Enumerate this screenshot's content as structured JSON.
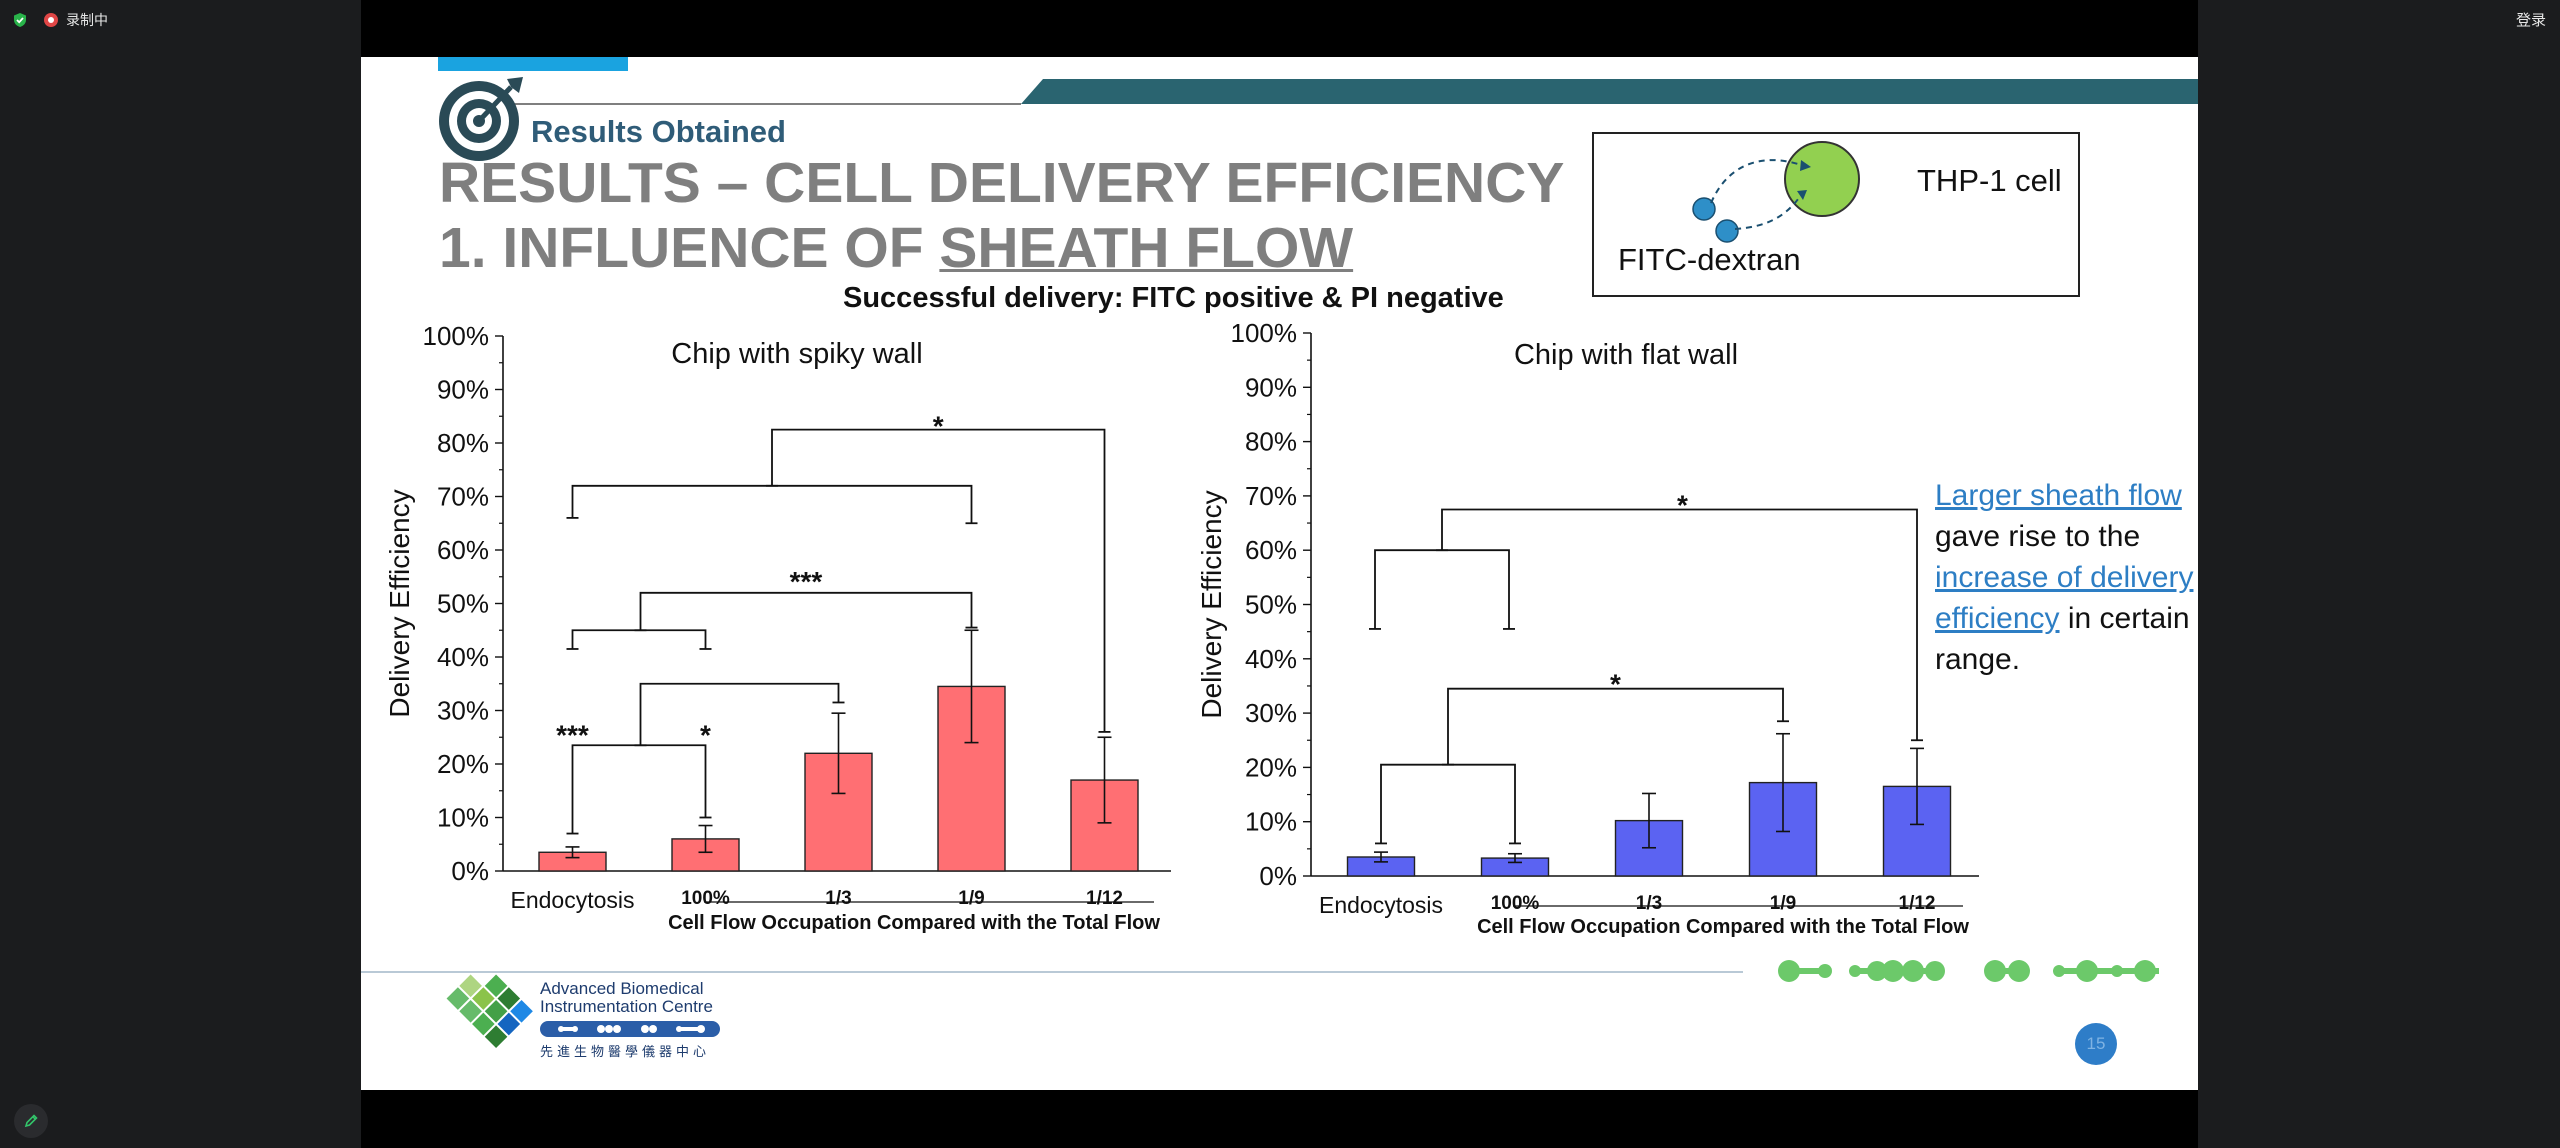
{
  "window": {
    "recording_label": "录制中",
    "login_label": "登录"
  },
  "colors": {
    "spiky_bar": "#ff6f73",
    "flat_bar": "#5b63f2",
    "title_gray": "#7f7f7f",
    "accent_teal": "#2a6470",
    "link_blue": "#2d7ec4",
    "cell_green": "#92d050",
    "dextran_blue": "#2e8fc8"
  },
  "slide": {
    "section_label": "Results Obtained",
    "title_line1": "RESULTS – CELL DELIVERY EFFICIENCY",
    "title_line2_prefix": "1. INFLUENCE OF ",
    "title_line2_underlined": "SHEATH FLOW",
    "subtitle": "Successful delivery: FITC positive & PI negative",
    "infobox": {
      "cell_label": "THP-1 cell",
      "dextran_label": "FITC-dextran"
    },
    "note": {
      "part1": "Larger sheath flow",
      "part2": " gave rise to the ",
      "part3": "increase of delivery efficiency",
      "part4": " in certain range."
    },
    "footer": {
      "org_line1": "Advanced Biomedical",
      "org_line2": "Instrumentation Centre",
      "org_cn": "先進生物醫學儀器中心",
      "page_number": "15"
    }
  },
  "chart_data": [
    {
      "type": "bar",
      "title": "Chip with spiky wall",
      "ylabel": "Delivery Efficiency",
      "xlabel": "Cell Flow Occupation Compared with the Total Flow",
      "categories": [
        "Endocytosis",
        "100%",
        "1/3",
        "1/9",
        "1/12"
      ],
      "values": [
        3.5,
        6,
        22,
        34.5,
        17
      ],
      "errors": [
        1,
        2.5,
        7.5,
        10.5,
        8
      ],
      "yticks": [
        "0%",
        "10%",
        "20%",
        "30%",
        "40%",
        "50%",
        "60%",
        "70%",
        "80%",
        "90%",
        "100%"
      ],
      "ylim": [
        0,
        100
      ],
      "significance": [
        {
          "from": 0,
          "to": 1,
          "label": "***"
        },
        {
          "from": 1,
          "to": 1,
          "label": "*"
        },
        {
          "from": 1,
          "to": 3,
          "label": "***"
        },
        {
          "from": 1,
          "to": 4,
          "label": "*"
        }
      ]
    },
    {
      "type": "bar",
      "title": "Chip with flat wall",
      "ylabel": "Delivery Efficiency",
      "xlabel": "Cell Flow Occupation Compared with the Total Flow",
      "categories": [
        "Endocytosis",
        "100%",
        "1/3",
        "1/9",
        "1/12"
      ],
      "values": [
        3.5,
        3.3,
        10.2,
        17.2,
        16.5
      ],
      "errors": [
        0.9,
        0.8,
        5,
        9,
        7
      ],
      "yticks": [
        "0%",
        "10%",
        "20%",
        "30%",
        "40%",
        "50%",
        "60%",
        "70%",
        "80%",
        "90%",
        "100%"
      ],
      "ylim": [
        0,
        100
      ],
      "significance": [
        {
          "from": 0,
          "to": 3,
          "label": "*"
        },
        {
          "from": 0,
          "to": 4,
          "label": "*"
        }
      ]
    }
  ]
}
